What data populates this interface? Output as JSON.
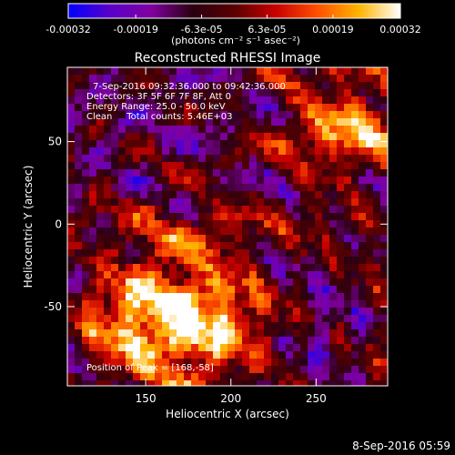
{
  "chart_data": {
    "type": "heatmap",
    "title": "Reconstructed RHESSI Image",
    "xlabel": "Heliocentric X (arcsec)",
    "ylabel": "Heliocentric Y (arcsec)",
    "xlim": [
      104,
      292
    ],
    "ylim": [
      -98,
      95
    ],
    "x_ticks": [
      150,
      200,
      250
    ],
    "y_ticks": [
      50,
      0,
      -50
    ],
    "colorbar": {
      "range": [
        -0.00032,
        0.00032
      ],
      "tick_values": [
        -0.00032,
        -0.00019,
        -6.3e-05,
        6.3e-05,
        0.00019,
        0.00032
      ],
      "tick_labels": [
        "-0.00032",
        "-0.00019",
        "-6.3e-05",
        "6.3e-05",
        "0.00019",
        "0.00032"
      ],
      "unit_label": "(photons cm⁻² s⁻¹ asec⁻²)",
      "colors": [
        "#0000ff",
        "#5a00c8",
        "#8000a0",
        "#2a0010",
        "#5a0000",
        "#c80000",
        "#ff5000",
        "#ffb400",
        "#ffffff"
      ]
    },
    "annotations": [
      "7-Sep-2016 09:32:36.000 to 09:42:36.000",
      "Detectors: 3F 5F 6F 7F 8F, Att 0",
      "Energy Range: 25.0 - 50.0 keV",
      "Clean     Total counts: 5.46E+03"
    ],
    "flux_position": "Position of Peak = [168,-58]",
    "footer_timestamp": "8-Sep-2016 05:59",
    "grid": false,
    "peak_xy": [
      168,
      -58
    ]
  }
}
